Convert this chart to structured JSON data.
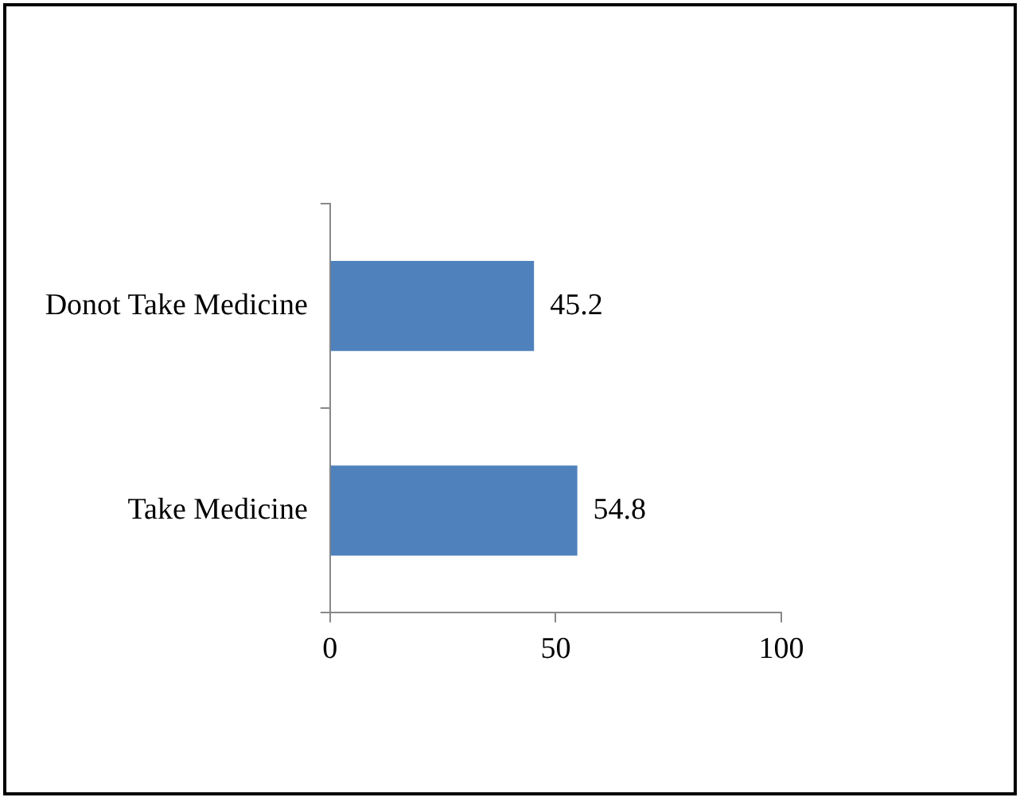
{
  "chart_data": {
    "type": "bar",
    "orientation": "horizontal",
    "categories": [
      "Donot Take Medicine",
      "Take Medicine"
    ],
    "values": [
      45.2,
      54.8
    ],
    "color": "#4f81bd",
    "xlim": [
      0,
      100
    ],
    "xticks": [
      0,
      50,
      100
    ],
    "grid": false,
    "legend": false,
    "data_labels": true
  }
}
